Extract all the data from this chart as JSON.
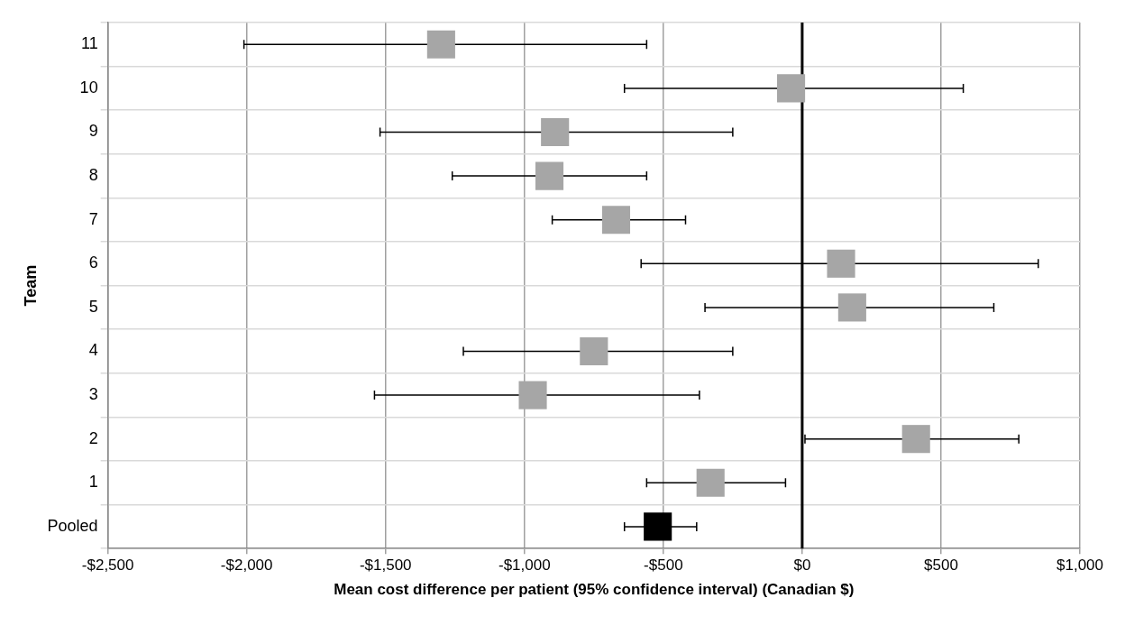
{
  "chart_data": {
    "type": "scatter",
    "xlabel": "Mean cost difference per patient (95% confidence interval) (Canadian $)",
    "ylabel": "Team",
    "categories": [
      "11",
      "10",
      "9",
      "8",
      "7",
      "6",
      "5",
      "4",
      "3",
      "2",
      "1",
      "Pooled"
    ],
    "values": [
      -1300,
      -40,
      -890,
      -910,
      -670,
      140,
      180,
      -750,
      -970,
      410,
      -330,
      -520
    ],
    "errors": [
      [
        -2010,
        -560
      ],
      [
        -640,
        580
      ],
      [
        -1520,
        -250
      ],
      [
        -1260,
        -560
      ],
      [
        -900,
        -420
      ],
      [
        -580,
        850
      ],
      [
        -350,
        690
      ],
      [
        -1220,
        -250
      ],
      [
        -1540,
        -370
      ],
      [
        10,
        780
      ],
      [
        -560,
        -60
      ],
      [
        -640,
        -380
      ]
    ],
    "colors": [
      "#a6a6a6",
      "#a6a6a6",
      "#a6a6a6",
      "#a6a6a6",
      "#a6a6a6",
      "#a6a6a6",
      "#a6a6a6",
      "#a6a6a6",
      "#a6a6a6",
      "#a6a6a6",
      "#a6a6a6",
      "#000000"
    ],
    "orientation": "horizontal",
    "marker": "square",
    "xlim": [
      -2500,
      1000
    ],
    "xticks": [
      {
        "value": -2500,
        "label": "-$2,500"
      },
      {
        "value": -2000,
        "label": "-$2,000"
      },
      {
        "value": -1500,
        "label": "-$1,500"
      },
      {
        "value": -1000,
        "label": "-$1,000"
      },
      {
        "value": -500,
        "label": "-$500"
      },
      {
        "value": 0,
        "label": "$0"
      },
      {
        "value": 500,
        "label": "$500"
      },
      {
        "value": 1000,
        "label": "$1,000"
      }
    ],
    "ref_lines": [
      {
        "axis": "x",
        "value": 0,
        "label": null,
        "color": "#000000"
      }
    ],
    "grid": true,
    "legend": false
  }
}
